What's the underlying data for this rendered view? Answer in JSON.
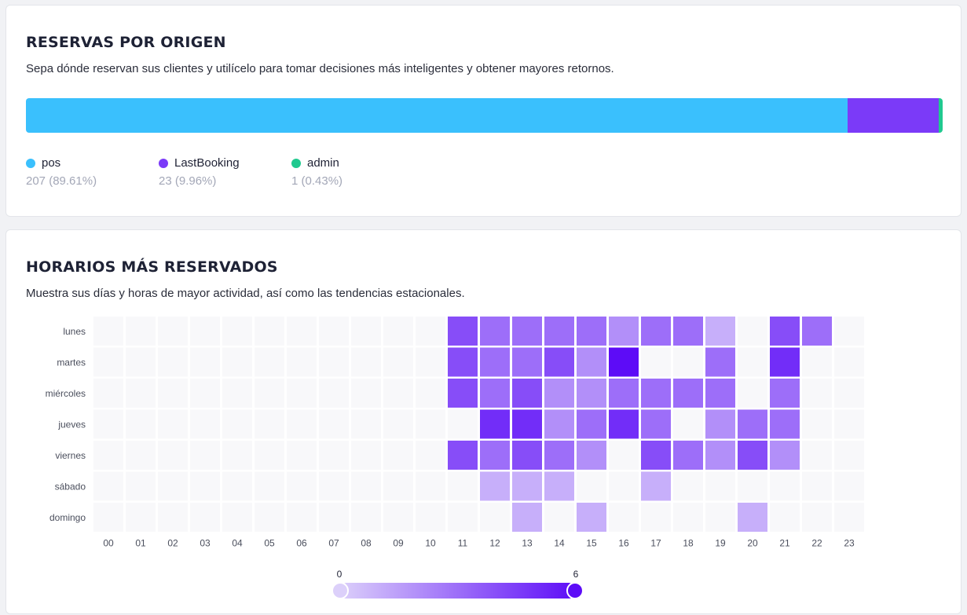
{
  "origin": {
    "title": "RESERVAS POR ORIGEN",
    "subtitle": "Sepa dónde reservan sus clientes y utilícelo para tomar decisiones más inteligentes y obtener mayores retornos.",
    "colors": {
      "pos": "#3ac0fd",
      "LastBooking": "#7b3af8",
      "admin": "#20c98f"
    }
  },
  "hours": {
    "title": "HORARIOS MÁS RESERVADOS",
    "subtitle": "Muestra sus días y horas de mayor actividad, así como las tendencias estacionales.",
    "scale_min_label": "0",
    "scale_max_label": "6"
  },
  "chart_data": [
    {
      "type": "bar",
      "orientation": "horizontal-stacked",
      "series": [
        {
          "name": "pos",
          "value": 207,
          "label": "207 (89.61%)",
          "color": "#3ac0fd"
        },
        {
          "name": "LastBooking",
          "value": 23,
          "label": "23 (9.96%)",
          "color": "#7b3af8"
        },
        {
          "name": "admin",
          "value": 1,
          "label": "1 (0.43%)",
          "color": "#20c98f"
        }
      ]
    },
    {
      "type": "heatmap",
      "x_categories": [
        "00",
        "01",
        "02",
        "03",
        "04",
        "05",
        "06",
        "07",
        "08",
        "09",
        "10",
        "11",
        "12",
        "13",
        "14",
        "15",
        "16",
        "17",
        "18",
        "19",
        "20",
        "21",
        "22",
        "23"
      ],
      "y_categories": [
        "lunes",
        "martes",
        "miércoles",
        "jueves",
        "viernes",
        "sábado",
        "domingo"
      ],
      "range": [
        0,
        6
      ],
      "color_min": "#dcd0fa",
      "color_max": "#5d0cf7",
      "empty_color": "#f8f8fa",
      "values": [
        [
          0,
          0,
          0,
          0,
          0,
          0,
          0,
          0,
          0,
          0,
          0,
          4,
          3,
          3,
          3,
          3,
          2,
          3,
          3,
          1,
          0,
          4,
          3,
          0
        ],
        [
          0,
          0,
          0,
          0,
          0,
          0,
          0,
          0,
          0,
          0,
          0,
          4,
          3,
          3,
          4,
          2,
          6,
          0,
          0,
          3,
          0,
          5,
          0,
          0
        ],
        [
          0,
          0,
          0,
          0,
          0,
          0,
          0,
          0,
          0,
          0,
          0,
          4,
          3,
          4,
          2,
          2,
          3,
          3,
          3,
          3,
          0,
          3,
          0,
          0
        ],
        [
          0,
          0,
          0,
          0,
          0,
          0,
          0,
          0,
          0,
          0,
          0,
          0,
          5,
          5,
          2,
          3,
          5,
          3,
          0,
          2,
          3,
          3,
          0,
          0
        ],
        [
          0,
          0,
          0,
          0,
          0,
          0,
          0,
          0,
          0,
          0,
          0,
          4,
          3,
          4,
          3,
          2,
          0,
          4,
          3,
          2,
          4,
          2,
          0,
          0
        ],
        [
          0,
          0,
          0,
          0,
          0,
          0,
          0,
          0,
          0,
          0,
          0,
          0,
          1,
          1,
          1,
          0,
          0,
          1,
          0,
          0,
          0,
          0,
          0,
          0
        ],
        [
          0,
          0,
          0,
          0,
          0,
          0,
          0,
          0,
          0,
          0,
          0,
          0,
          0,
          1,
          0,
          1,
          0,
          0,
          0,
          0,
          1,
          0,
          0,
          0
        ]
      ]
    }
  ]
}
